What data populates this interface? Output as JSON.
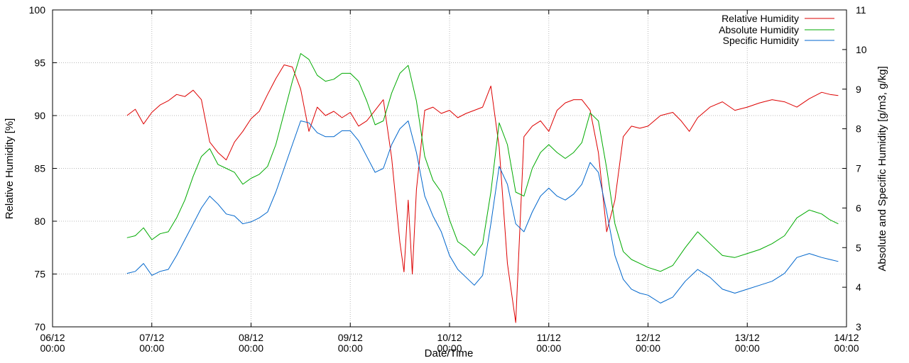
{
  "chart_data": {
    "type": "line",
    "xlabel": "Date/Time",
    "ylabel": "Relative Humidity [%]",
    "y2label": "Absolute and Specific Humidity [g/m3, g/kg]",
    "xlim": [
      "06/12 00:00",
      "14/12 00:00"
    ],
    "x_ticks": [
      {
        "date": "06/12",
        "time": "00:00"
      },
      {
        "date": "07/12",
        "time": "00:00"
      },
      {
        "date": "08/12",
        "time": "00:00"
      },
      {
        "date": "09/12",
        "time": "00:00"
      },
      {
        "date": "10/12",
        "time": "00:00"
      },
      {
        "date": "11/12",
        "time": "00:00"
      },
      {
        "date": "12/12",
        "time": "00:00"
      },
      {
        "date": "13/12",
        "time": "00:00"
      },
      {
        "date": "14/12",
        "time": "00:00"
      }
    ],
    "ylim": [
      70,
      100
    ],
    "y_ticks": [
      70,
      75,
      80,
      85,
      90,
      95,
      100
    ],
    "y2lim": [
      3,
      11
    ],
    "y2_ticks": [
      3,
      4,
      5,
      6,
      7,
      8,
      9,
      10,
      11
    ],
    "grid": true,
    "legend_position": "top-right",
    "series": [
      {
        "name": "Relative Humidity",
        "axis": "y",
        "color": "#dd0000",
        "points": [
          [
            "06/12 18:00",
            90.0
          ],
          [
            "06/12 20:00",
            90.6
          ],
          [
            "06/12 22:00",
            89.2
          ],
          [
            "07/12 00:00",
            90.3
          ],
          [
            "07/12 02:00",
            91.0
          ],
          [
            "07/12 04:00",
            91.4
          ],
          [
            "07/12 06:00",
            92.0
          ],
          [
            "07/12 08:00",
            91.8
          ],
          [
            "07/12 10:00",
            92.4
          ],
          [
            "07/12 12:00",
            91.5
          ],
          [
            "07/12 14:00",
            87.5
          ],
          [
            "07/12 16:00",
            86.5
          ],
          [
            "07/12 18:00",
            85.8
          ],
          [
            "07/12 20:00",
            87.5
          ],
          [
            "07/12 22:00",
            88.5
          ],
          [
            "08/12 00:00",
            89.7
          ],
          [
            "08/12 02:00",
            90.4
          ],
          [
            "08/12 04:00",
            92.0
          ],
          [
            "08/12 06:00",
            93.5
          ],
          [
            "08/12 08:00",
            94.8
          ],
          [
            "08/12 10:00",
            94.6
          ],
          [
            "08/12 12:00",
            92.5
          ],
          [
            "08/12 14:00",
            88.5
          ],
          [
            "08/12 16:00",
            90.8
          ],
          [
            "08/12 18:00",
            90.0
          ],
          [
            "08/12 20:00",
            90.4
          ],
          [
            "08/12 22:00",
            89.8
          ],
          [
            "09/12 00:00",
            90.3
          ],
          [
            "09/12 02:00",
            89.0
          ],
          [
            "09/12 04:00",
            89.5
          ],
          [
            "09/12 06:00",
            90.5
          ],
          [
            "09/12 08:00",
            91.5
          ],
          [
            "09/12 10:00",
            86.0
          ],
          [
            "09/12 12:00",
            78.0
          ],
          [
            "09/12 13:00",
            75.2
          ],
          [
            "09/12 14:00",
            82.0
          ],
          [
            "09/12 15:00",
            75.0
          ],
          [
            "09/12 16:00",
            83.0
          ],
          [
            "09/12 18:00",
            90.5
          ],
          [
            "09/12 20:00",
            90.8
          ],
          [
            "09/12 22:00",
            90.2
          ],
          [
            "10/12 00:00",
            90.5
          ],
          [
            "10/12 02:00",
            89.8
          ],
          [
            "10/12 04:00",
            90.2
          ],
          [
            "10/12 06:00",
            90.5
          ],
          [
            "10/12 08:00",
            90.8
          ],
          [
            "10/12 10:00",
            92.8
          ],
          [
            "10/12 12:00",
            87.0
          ],
          [
            "10/12 14:00",
            76.0
          ],
          [
            "10/12 16:00",
            70.4
          ],
          [
            "10/12 18:00",
            88.0
          ],
          [
            "10/12 20:00",
            89.0
          ],
          [
            "10/12 22:00",
            89.5
          ],
          [
            "11/12 00:00",
            88.5
          ],
          [
            "11/12 02:00",
            90.5
          ],
          [
            "11/12 04:00",
            91.2
          ],
          [
            "11/12 06:00",
            91.5
          ],
          [
            "11/12 08:00",
            91.5
          ],
          [
            "11/12 10:00",
            90.5
          ],
          [
            "11/12 12:00",
            86.5
          ],
          [
            "11/12 14:00",
            79.0
          ],
          [
            "11/12 16:00",
            82.0
          ],
          [
            "11/12 18:00",
            88.0
          ],
          [
            "11/12 20:00",
            89.0
          ],
          [
            "11/12 22:00",
            88.8
          ],
          [
            "12/12 00:00",
            89.0
          ],
          [
            "12/12 03:00",
            90.0
          ],
          [
            "12/12 06:00",
            90.3
          ],
          [
            "12/12 08:00",
            89.5
          ],
          [
            "12/12 10:00",
            88.5
          ],
          [
            "12/12 12:00",
            89.8
          ],
          [
            "12/12 15:00",
            90.8
          ],
          [
            "12/12 18:00",
            91.3
          ],
          [
            "12/12 21:00",
            90.5
          ],
          [
            "13/12 00:00",
            90.8
          ],
          [
            "13/12 03:00",
            91.2
          ],
          [
            "13/12 06:00",
            91.5
          ],
          [
            "13/12 09:00",
            91.3
          ],
          [
            "13/12 12:00",
            90.8
          ],
          [
            "13/12 15:00",
            91.6
          ],
          [
            "13/12 18:00",
            92.2
          ],
          [
            "13/12 20:00",
            92.0
          ],
          [
            "13/12 22:00",
            91.9
          ]
        ]
      },
      {
        "name": "Absolute Humidity",
        "axis": "y2",
        "color": "#00aa00",
        "points": [
          [
            "06/12 18:00",
            5.25
          ],
          [
            "06/12 20:00",
            5.3
          ],
          [
            "06/12 22:00",
            5.5
          ],
          [
            "07/12 00:00",
            5.2
          ],
          [
            "07/12 02:00",
            5.35
          ],
          [
            "07/12 04:00",
            5.4
          ],
          [
            "07/12 06:00",
            5.75
          ],
          [
            "07/12 08:00",
            6.2
          ],
          [
            "07/12 10:00",
            6.8
          ],
          [
            "07/12 12:00",
            7.3
          ],
          [
            "07/12 14:00",
            7.5
          ],
          [
            "07/12 16:00",
            7.1
          ],
          [
            "07/12 18:00",
            7.0
          ],
          [
            "07/12 20:00",
            6.9
          ],
          [
            "07/12 22:00",
            6.6
          ],
          [
            "08/12 00:00",
            6.75
          ],
          [
            "08/12 02:00",
            6.85
          ],
          [
            "08/12 04:00",
            7.05
          ],
          [
            "08/12 06:00",
            7.6
          ],
          [
            "08/12 08:00",
            8.4
          ],
          [
            "08/12 10:00",
            9.2
          ],
          [
            "08/12 12:00",
            9.9
          ],
          [
            "08/12 14:00",
            9.75
          ],
          [
            "08/12 16:00",
            9.35
          ],
          [
            "08/12 18:00",
            9.2
          ],
          [
            "08/12 20:00",
            9.25
          ],
          [
            "08/12 22:00",
            9.4
          ],
          [
            "09/12 00:00",
            9.4
          ],
          [
            "09/12 02:00",
            9.2
          ],
          [
            "09/12 04:00",
            8.7
          ],
          [
            "09/12 06:00",
            8.1
          ],
          [
            "09/12 08:00",
            8.2
          ],
          [
            "09/12 10:00",
            8.9
          ],
          [
            "09/12 12:00",
            9.4
          ],
          [
            "09/12 14:00",
            9.6
          ],
          [
            "09/12 16:00",
            8.7
          ],
          [
            "09/12 18:00",
            7.3
          ],
          [
            "09/12 20:00",
            6.7
          ],
          [
            "09/12 22:00",
            6.4
          ],
          [
            "10/12 00:00",
            5.7
          ],
          [
            "10/12 02:00",
            5.15
          ],
          [
            "10/12 04:00",
            5.0
          ],
          [
            "10/12 06:00",
            4.8
          ],
          [
            "10/12 08:00",
            5.1
          ],
          [
            "10/12 10:00",
            6.4
          ],
          [
            "10/12 12:00",
            8.15
          ],
          [
            "10/12 14:00",
            7.6
          ],
          [
            "10/12 16:00",
            6.4
          ],
          [
            "10/12 18:00",
            6.3
          ],
          [
            "10/12 20:00",
            7.0
          ],
          [
            "10/12 22:00",
            7.4
          ],
          [
            "11/12 00:00",
            7.6
          ],
          [
            "11/12 02:00",
            7.4
          ],
          [
            "11/12 04:00",
            7.25
          ],
          [
            "11/12 06:00",
            7.4
          ],
          [
            "11/12 08:00",
            7.65
          ],
          [
            "11/12 10:00",
            8.4
          ],
          [
            "11/12 12:00",
            8.2
          ],
          [
            "11/12 14:00",
            7.0
          ],
          [
            "11/12 16:00",
            5.6
          ],
          [
            "11/12 18:00",
            4.9
          ],
          [
            "11/12 20:00",
            4.7
          ],
          [
            "11/12 22:00",
            4.6
          ],
          [
            "12/12 00:00",
            4.5
          ],
          [
            "12/12 03:00",
            4.4
          ],
          [
            "12/12 06:00",
            4.55
          ],
          [
            "12/12 09:00",
            5.0
          ],
          [
            "12/12 12:00",
            5.4
          ],
          [
            "12/12 15:00",
            5.1
          ],
          [
            "12/12 18:00",
            4.8
          ],
          [
            "12/12 21:00",
            4.75
          ],
          [
            "13/12 00:00",
            4.85
          ],
          [
            "13/12 03:00",
            4.95
          ],
          [
            "13/12 06:00",
            5.1
          ],
          [
            "13/12 09:00",
            5.3
          ],
          [
            "13/12 12:00",
            5.75
          ],
          [
            "13/12 15:00",
            5.95
          ],
          [
            "13/12 18:00",
            5.85
          ],
          [
            "13/12 20:00",
            5.7
          ],
          [
            "13/12 22:00",
            5.6
          ]
        ]
      },
      {
        "name": "Specific Humidity",
        "axis": "y2",
        "color": "#0066cc",
        "points": [
          [
            "06/12 18:00",
            4.35
          ],
          [
            "06/12 20:00",
            4.4
          ],
          [
            "06/12 22:00",
            4.6
          ],
          [
            "07/12 00:00",
            4.3
          ],
          [
            "07/12 02:00",
            4.4
          ],
          [
            "07/12 04:00",
            4.45
          ],
          [
            "07/12 06:00",
            4.8
          ],
          [
            "07/12 08:00",
            5.2
          ],
          [
            "07/12 10:00",
            5.6
          ],
          [
            "07/12 12:00",
            6.0
          ],
          [
            "07/12 14:00",
            6.3
          ],
          [
            "07/12 16:00",
            6.1
          ],
          [
            "07/12 18:00",
            5.85
          ],
          [
            "07/12 20:00",
            5.8
          ],
          [
            "07/12 22:00",
            5.6
          ],
          [
            "08/12 00:00",
            5.65
          ],
          [
            "08/12 02:00",
            5.75
          ],
          [
            "08/12 04:00",
            5.9
          ],
          [
            "08/12 06:00",
            6.4
          ],
          [
            "08/12 08:00",
            7.0
          ],
          [
            "08/12 10:00",
            7.6
          ],
          [
            "08/12 12:00",
            8.2
          ],
          [
            "08/12 14:00",
            8.15
          ],
          [
            "08/12 16:00",
            7.9
          ],
          [
            "08/12 18:00",
            7.8
          ],
          [
            "08/12 20:00",
            7.8
          ],
          [
            "08/12 22:00",
            7.95
          ],
          [
            "09/12 00:00",
            7.95
          ],
          [
            "09/12 02:00",
            7.7
          ],
          [
            "09/12 04:00",
            7.3
          ],
          [
            "09/12 06:00",
            6.9
          ],
          [
            "09/12 08:00",
            7.0
          ],
          [
            "09/12 10:00",
            7.6
          ],
          [
            "09/12 12:00",
            8.0
          ],
          [
            "09/12 14:00",
            8.2
          ],
          [
            "09/12 16:00",
            7.4
          ],
          [
            "09/12 18:00",
            6.3
          ],
          [
            "09/12 20:00",
            5.8
          ],
          [
            "09/12 22:00",
            5.4
          ],
          [
            "10/12 00:00",
            4.8
          ],
          [
            "10/12 02:00",
            4.45
          ],
          [
            "10/12 04:00",
            4.25
          ],
          [
            "10/12 06:00",
            4.05
          ],
          [
            "10/12 08:00",
            4.3
          ],
          [
            "10/12 10:00",
            5.6
          ],
          [
            "10/12 12:00",
            7.05
          ],
          [
            "10/12 14:00",
            6.6
          ],
          [
            "10/12 16:00",
            5.6
          ],
          [
            "10/12 18:00",
            5.4
          ],
          [
            "10/12 20:00",
            5.9
          ],
          [
            "10/12 22:00",
            6.3
          ],
          [
            "11/12 00:00",
            6.5
          ],
          [
            "11/12 02:00",
            6.3
          ],
          [
            "11/12 04:00",
            6.2
          ],
          [
            "11/12 06:00",
            6.35
          ],
          [
            "11/12 08:00",
            6.6
          ],
          [
            "11/12 10:00",
            7.15
          ],
          [
            "11/12 12:00",
            6.9
          ],
          [
            "11/12 14:00",
            5.9
          ],
          [
            "11/12 16:00",
            4.8
          ],
          [
            "11/12 18:00",
            4.2
          ],
          [
            "11/12 20:00",
            3.95
          ],
          [
            "11/12 22:00",
            3.85
          ],
          [
            "12/12 00:00",
            3.8
          ],
          [
            "12/12 03:00",
            3.6
          ],
          [
            "12/12 06:00",
            3.75
          ],
          [
            "12/12 09:00",
            4.15
          ],
          [
            "12/12 12:00",
            4.45
          ],
          [
            "12/12 15:00",
            4.25
          ],
          [
            "12/12 18:00",
            3.95
          ],
          [
            "12/12 21:00",
            3.85
          ],
          [
            "13/12 00:00",
            3.95
          ],
          [
            "13/12 03:00",
            4.05
          ],
          [
            "13/12 06:00",
            4.15
          ],
          [
            "13/12 09:00",
            4.35
          ],
          [
            "13/12 12:00",
            4.75
          ],
          [
            "13/12 15:00",
            4.85
          ],
          [
            "13/12 18:00",
            4.75
          ],
          [
            "13/12 20:00",
            4.7
          ],
          [
            "13/12 22:00",
            4.65
          ]
        ]
      }
    ]
  }
}
